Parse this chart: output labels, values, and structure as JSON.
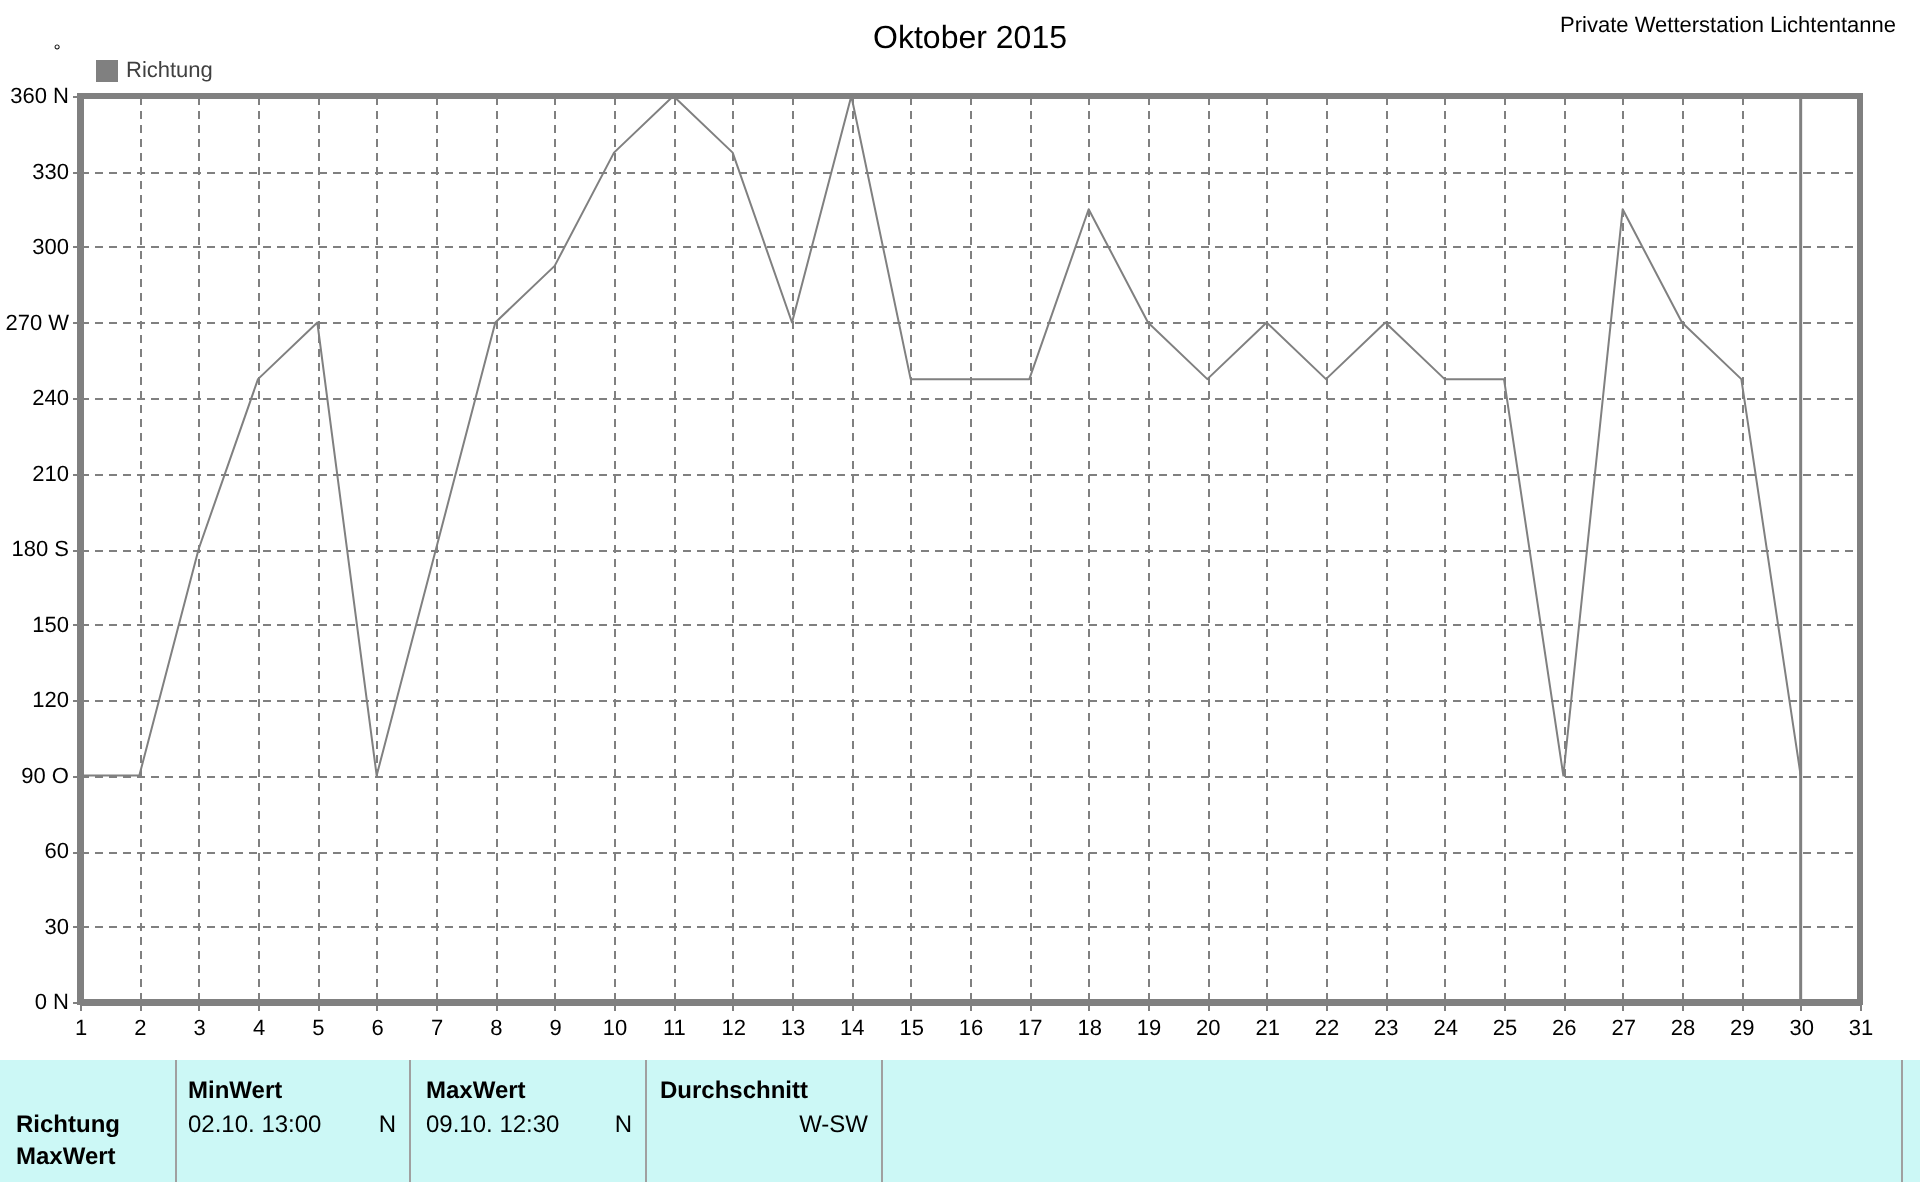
{
  "chart_data": {
    "type": "line",
    "title": "Oktober 2015",
    "ylabel": "°",
    "annotations": [
      "Private Wetterstation Lichtentanne",
      "Richtung",
      "MaxWert",
      "MinWert",
      "02.10.  13:00",
      "N",
      "MaxWert",
      "09.10.  12:30",
      "N",
      "Durchschnitt",
      "W-SW"
    ],
    "x": [
      1,
      2,
      3,
      4,
      5,
      6,
      7,
      8,
      9,
      10,
      11,
      12,
      13,
      14,
      15,
      16,
      17,
      18,
      19,
      20,
      21,
      22,
      23,
      24,
      25,
      26,
      27,
      28,
      29,
      30
    ],
    "series": [
      {
        "name": "Richtung",
        "color": "#808080",
        "values": [
          90,
          90,
          180,
          247.5,
          270,
          90,
          180,
          270,
          292.5,
          337.5,
          360,
          337.5,
          270,
          360,
          247.5,
          247.5,
          247.5,
          315,
          270,
          247.5,
          270,
          247.5,
          270,
          247.5,
          247.5,
          90,
          315,
          270,
          247.5,
          90
        ]
      }
    ],
    "xlim": [
      1,
      31
    ],
    "xticks": [
      1,
      2,
      3,
      4,
      5,
      6,
      7,
      8,
      9,
      10,
      11,
      12,
      13,
      14,
      15,
      16,
      17,
      18,
      19,
      20,
      21,
      22,
      23,
      24,
      25,
      26,
      27,
      28,
      29,
      30,
      31
    ],
    "ylim": [
      0,
      360
    ],
    "yticks": [
      {
        "value": 0,
        "label": "0 N"
      },
      30,
      60,
      {
        "value": 90,
        "label": "90 O"
      },
      120,
      150,
      {
        "value": 180,
        "label": "180 S"
      },
      210,
      240,
      {
        "value": 270,
        "label": "270 W"
      },
      300,
      330,
      {
        "value": 360,
        "label": "360 N"
      }
    ],
    "ref_lines": [
      {
        "axis": "x",
        "value": 30,
        "color": "#808080"
      }
    ],
    "grid": true,
    "legend": "top left",
    "line_style": "solid"
  }
}
